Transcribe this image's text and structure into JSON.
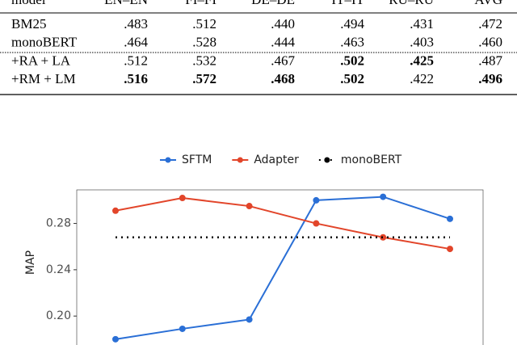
{
  "table": {
    "header": [
      "model",
      "EN–EN",
      "FI–FI",
      "DE–DE",
      "IT–IT",
      "RU–RU",
      "AVG"
    ],
    "rows": [
      {
        "cells": [
          "BM25",
          ".483",
          ".512",
          ".440",
          ".494",
          ".431",
          ".472"
        ],
        "bold": [
          false,
          false,
          false,
          false,
          false,
          false,
          false
        ]
      },
      {
        "cells": [
          "monoBERT",
          ".464",
          ".528",
          ".444",
          ".463",
          ".403",
          ".460"
        ],
        "bold": [
          false,
          false,
          false,
          false,
          false,
          false,
          false
        ]
      },
      {
        "cells": [
          "+RA + LA",
          ".512",
          ".532",
          ".467",
          ".502",
          ".425",
          ".487"
        ],
        "bold": [
          false,
          false,
          false,
          false,
          true,
          true,
          false
        ]
      },
      {
        "cells": [
          "+RM + LM",
          ".516",
          ".572",
          ".468",
          ".502",
          ".422",
          ".496"
        ],
        "bold": [
          false,
          true,
          true,
          true,
          true,
          false,
          true
        ]
      }
    ]
  },
  "chart_data": {
    "type": "line",
    "y_label": "MAP",
    "categories": [
      null,
      null,
      null,
      null,
      null,
      null
    ],
    "series": [
      {
        "name": "SFTM",
        "color": "#2a6fd6",
        "style": "solid",
        "values": [
          0.18,
          0.189,
          0.197,
          0.3,
          0.303,
          0.284
        ]
      },
      {
        "name": "Adapter",
        "color": "#e2452a",
        "style": "solid",
        "values": [
          0.291,
          0.302,
          0.295,
          0.28,
          0.268,
          0.258
        ]
      },
      {
        "name": "monoBERT",
        "color": "#000000",
        "style": "dotted",
        "values": [
          0.268,
          0.268,
          0.268,
          0.268,
          0.268,
          0.268
        ]
      }
    ],
    "ylim": [
      0.175,
      0.309
    ],
    "yticks": [
      {
        "value": 0.2,
        "label": "0.20"
      },
      {
        "value": 0.24,
        "label": "0.24"
      },
      {
        "value": 0.28,
        "label": "0.28"
      }
    ],
    "minor_yticks": [
      0.22,
      0.26,
      0.3
    ],
    "grid": true,
    "legend": "top"
  }
}
